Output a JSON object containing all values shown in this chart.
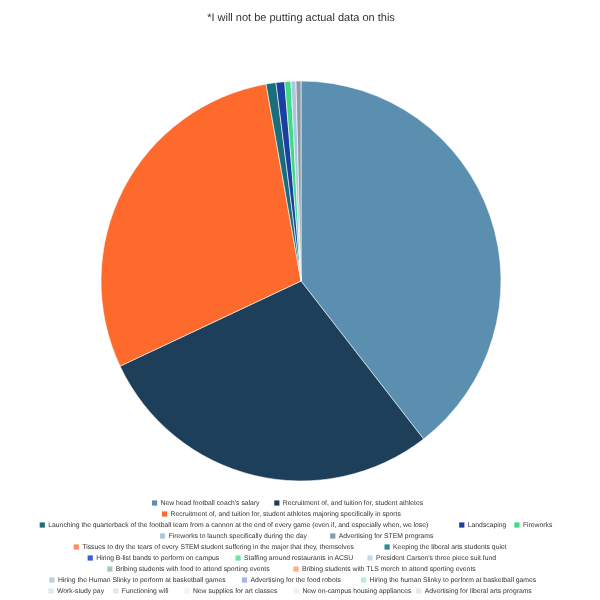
{
  "chart_data": {
    "type": "pie",
    "title": "*I will not be putting actual data on this",
    "legend": "bottom",
    "categories": [
      "New head football coach's salary",
      "Recruitment of, and tuition for, student athletes",
      "Recruitment of, and tuition for, student athletes majoring specifically in sports",
      "Launching the quarterback of the football team from a cannon at the end of every game (even if, and especially when, we lose)",
      "Landscaping",
      "Fireworks",
      "Fireworks to launch specifically during the day",
      "Advertising for STEM programs",
      "Tissues to dry the tears of every STEM student suffering in the major that they, themselves",
      "Keeping the liberal arts students quiet",
      "Hiring B-list bands to perform on campus",
      "Staffing around restaurants in ACSU",
      "President Carson's three piece suit fund",
      "Bribing students with food to attend sporting events",
      "Bribing students with TLS merch to attend sporting events",
      "Hiring the Human Slinky to perform at basketball games",
      "Advertising for the food robots",
      "Hiring the human Slinky to perform at basketball games",
      "Work-study pay",
      "Functioning wifi",
      "New supplies for art classes",
      "New on-campus housing appliances",
      "Advertising for liberal arts programs"
    ],
    "values": [
      39.5,
      28.5,
      29.2,
      0.8,
      0.7,
      0.5,
      0.4,
      0.4,
      0,
      0,
      0,
      0,
      0,
      0,
      0,
      0,
      0,
      0,
      0,
      0,
      0,
      0,
      0
    ],
    "colors": [
      "#5a8fb0",
      "#1e3f5a",
      "#fe6a2c",
      "#1a6e7a",
      "#1b3fa0",
      "#3ddc84",
      "#a9c7e0",
      "#8a9ba8",
      "#ff8a5c",
      "#2a8c96",
      "#3b5fd0",
      "#6fe3a0",
      "#c4d8ea",
      "#9fc7c7",
      "#ffb08a",
      "#b8d0e6",
      "#a8b4f0",
      "#b5f0d0",
      "#dde8f2",
      "#e6e6e6",
      "#f2f2f2",
      "#eeeeee",
      "#e0e8f0"
    ]
  }
}
